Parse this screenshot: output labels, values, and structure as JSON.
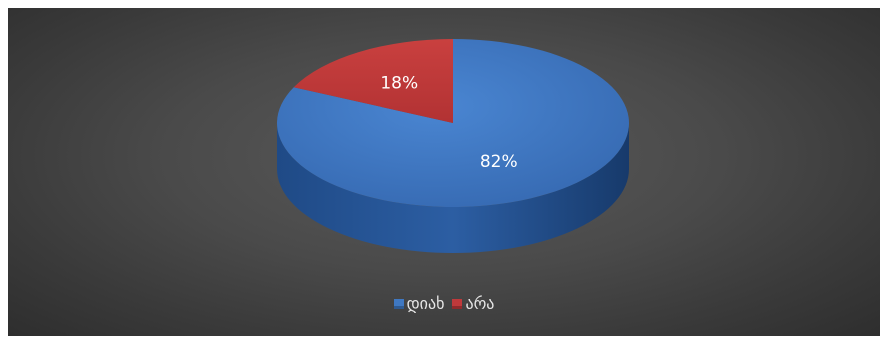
{
  "chart_data": {
    "type": "pie",
    "style": "3d",
    "title": "",
    "categories": [
      "დიახ",
      "არა"
    ],
    "values": [
      82,
      18
    ],
    "data_labels": [
      "82%",
      "18%"
    ],
    "colors": [
      "#3f78c2",
      "#c0393b"
    ],
    "legend_position": "bottom"
  }
}
